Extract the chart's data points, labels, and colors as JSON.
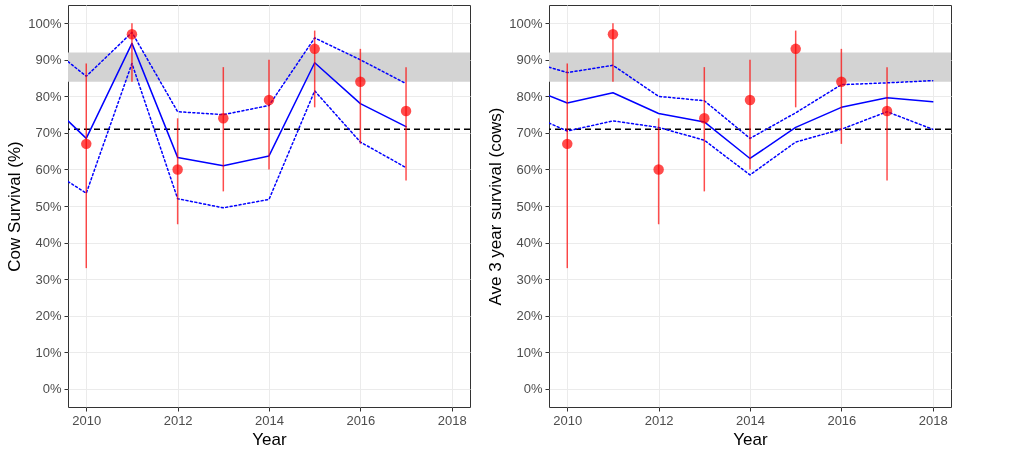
{
  "chart_data": [
    {
      "type": "line",
      "xlabel": "Year",
      "ylabel": "Cow Survival (%)",
      "xlim": [
        2009.6,
        2018.4
      ],
      "xticks": [
        2010,
        2012,
        2014,
        2016,
        2018
      ],
      "ylim": [
        -5,
        105
      ],
      "yticks": [
        {
          "value": 0,
          "label": "0%"
        },
        {
          "value": 10,
          "label": "10%"
        },
        {
          "value": 20,
          "label": "20%"
        },
        {
          "value": 30,
          "label": "30%"
        },
        {
          "value": 40,
          "label": "40%"
        },
        {
          "value": 50,
          "label": "50%"
        },
        {
          "value": 60,
          "label": "60%"
        },
        {
          "value": 70,
          "label": "70%"
        },
        {
          "value": 80,
          "label": "80%"
        },
        {
          "value": 90,
          "label": "90%"
        },
        {
          "value": 100,
          "label": "100%"
        }
      ],
      "grid": true,
      "bands": [
        {
          "axis": "y",
          "from": 84,
          "to": 92,
          "color": "#d3d3d3"
        }
      ],
      "ref_lines": [
        {
          "axis": "y",
          "value": 71,
          "color": "#000000",
          "line_style": "dashed"
        }
      ],
      "series": [
        {
          "type": "line",
          "color": "#0000ff",
          "line_style": "solid",
          "x": [
            2009.6,
            2010,
            2011,
            2012,
            2013,
            2014,
            2015,
            2016,
            2017
          ],
          "values": [
            73.3,
            68.5,
            94.5,
            63.3,
            61,
            63.7,
            89.2,
            78,
            71.7
          ]
        },
        {
          "type": "line",
          "color": "#0000ff",
          "line_style": "dotted",
          "x": [
            2009.6,
            2010,
            2011,
            2012,
            2013,
            2014,
            2015,
            2016,
            2017
          ],
          "values": [
            89.5,
            85.5,
            97.5,
            75.8,
            75,
            77.5,
            96,
            90,
            83.5
          ]
        },
        {
          "type": "line",
          "color": "#0000ff",
          "line_style": "dotted",
          "x": [
            2009.6,
            2010,
            2011,
            2012,
            2013,
            2014,
            2015,
            2016,
            2017
          ],
          "values": [
            56.7,
            53.5,
            89,
            52,
            49.5,
            51.8,
            81.5,
            67.5,
            60.5
          ]
        },
        {
          "type": "scatter",
          "color": "#ff0000",
          "marker": "circle",
          "x": [
            2010,
            2011,
            2012,
            2013,
            2014,
            2015,
            2016,
            2017
          ],
          "values": [
            67,
            97,
            60,
            74,
            79,
            93,
            84,
            76
          ],
          "errors": [
            [
              33,
              89
            ],
            [
              84,
              100
            ],
            [
              45,
              74
            ],
            [
              54,
              88
            ],
            [
              60,
              90
            ],
            [
              77,
              98
            ],
            [
              67,
              93
            ],
            [
              57,
              88
            ]
          ]
        }
      ]
    },
    {
      "type": "line",
      "xlabel": "Year",
      "ylabel": "Ave 3 year survival (cows)",
      "xlim": [
        2009.6,
        2018.4
      ],
      "xticks": [
        2010,
        2012,
        2014,
        2016,
        2018
      ],
      "ylim": [
        -5,
        105
      ],
      "yticks": [
        {
          "value": 0,
          "label": "0%"
        },
        {
          "value": 10,
          "label": "10%"
        },
        {
          "value": 20,
          "label": "20%"
        },
        {
          "value": 30,
          "label": "30%"
        },
        {
          "value": 40,
          "label": "40%"
        },
        {
          "value": 50,
          "label": "50%"
        },
        {
          "value": 60,
          "label": "60%"
        },
        {
          "value": 70,
          "label": "70%"
        },
        {
          "value": 80,
          "label": "80%"
        },
        {
          "value": 90,
          "label": "90%"
        },
        {
          "value": 100,
          "label": "100%"
        }
      ],
      "grid": true,
      "bands": [
        {
          "axis": "y",
          "from": 84,
          "to": 92,
          "color": "#d3d3d3"
        }
      ],
      "ref_lines": [
        {
          "axis": "y",
          "value": 71,
          "color": "#000000",
          "line_style": "dashed"
        }
      ],
      "series": [
        {
          "type": "line",
          "color": "#0000ff",
          "line_style": "solid",
          "x": [
            2009.6,
            2010,
            2011,
            2012,
            2013,
            2014,
            2015,
            2016,
            2017,
            2018
          ],
          "values": [
            80.2,
            78.2,
            81,
            75.3,
            73,
            63,
            71.5,
            77,
            79.6,
            78.5
          ]
        },
        {
          "type": "line",
          "color": "#0000ff",
          "line_style": "dotted",
          "x": [
            2009.6,
            2010,
            2011,
            2012,
            2013,
            2014,
            2015,
            2016,
            2017,
            2018
          ],
          "values": [
            88,
            86.5,
            88.5,
            80,
            78.8,
            68.5,
            75.5,
            83.2,
            83.7,
            84.3
          ]
        },
        {
          "type": "line",
          "color": "#0000ff",
          "line_style": "dotted",
          "x": [
            2009.6,
            2010,
            2011,
            2012,
            2013,
            2014,
            2015,
            2016,
            2017,
            2018
          ],
          "values": [
            72.7,
            70.5,
            73.3,
            71.5,
            68,
            58.5,
            67.5,
            71,
            75.8,
            71
          ]
        },
        {
          "type": "scatter",
          "color": "#ff0000",
          "marker": "circle",
          "x": [
            2010,
            2011,
            2012,
            2013,
            2014,
            2015,
            2016,
            2017
          ],
          "values": [
            67,
            97,
            60,
            74,
            79,
            93,
            84,
            76
          ],
          "errors": [
            [
              33,
              89
            ],
            [
              84,
              100
            ],
            [
              45,
              74
            ],
            [
              54,
              88
            ],
            [
              60,
              90
            ],
            [
              77,
              98
            ],
            [
              67,
              93
            ],
            [
              57,
              88
            ]
          ]
        }
      ]
    }
  ]
}
